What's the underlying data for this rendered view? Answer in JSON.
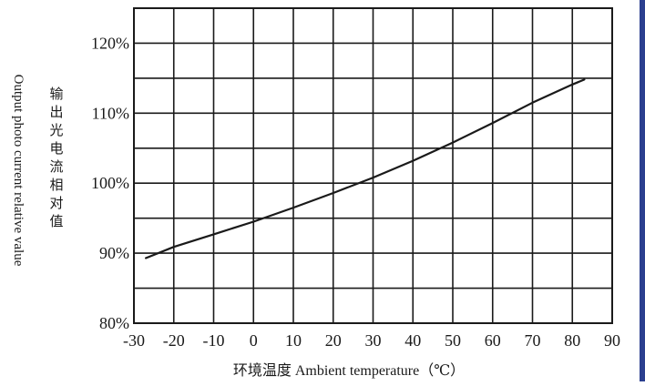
{
  "chart_data": {
    "type": "line",
    "title": "",
    "ylabel_en": "Output photo current relative value",
    "ylabel_cn": "输出光电流相对值",
    "xlabel": "环境温度 Ambient temperature（℃）",
    "xlim": [
      -30,
      90
    ],
    "ylim": [
      80,
      125
    ],
    "x_ticks": [
      -30,
      -20,
      -10,
      0,
      10,
      20,
      30,
      40,
      50,
      60,
      70,
      80,
      90
    ],
    "x_tick_labels": [
      "-30",
      "-20",
      "-10",
      "0",
      "10",
      "20",
      "30",
      "40",
      "50",
      "60",
      "70",
      "80",
      "90"
    ],
    "y_ticks": [
      80,
      90,
      100,
      110,
      120
    ],
    "y_tick_labels": [
      "80%",
      "90%",
      "100%",
      "110%",
      "120%"
    ],
    "grid": true,
    "legend": "none",
    "series": [
      {
        "x": [
          -27,
          -20,
          -10,
          0,
          10,
          20,
          30,
          40,
          50,
          60,
          70,
          80,
          83
        ],
        "y": [
          89.3,
          90.9,
          92.7,
          94.5,
          96.5,
          98.6,
          100.8,
          103.2,
          105.8,
          108.6,
          111.5,
          114.1,
          114.8
        ]
      }
    ],
    "colors": {
      "line": "#1a1a1a",
      "grid": "#1a1a1a",
      "edge_bar": "#2b3f8f"
    }
  }
}
